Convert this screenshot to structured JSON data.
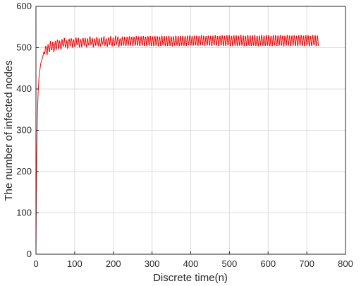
{
  "chart_data": {
    "type": "line",
    "title": "",
    "xlabel": "Discrete time(n)",
    "ylabel": "The number of infected nodes",
    "xlim": [
      0,
      800
    ],
    "ylim": [
      0,
      600
    ],
    "xticks": [
      0,
      100,
      200,
      300,
      400,
      500,
      600,
      700,
      800
    ],
    "yticks": [
      0,
      100,
      200,
      300,
      400,
      500,
      600
    ],
    "grid": true,
    "legend": "none",
    "series": [
      {
        "color": "#ff0000",
        "x": [
          0,
          1,
          2,
          3,
          4,
          5,
          6,
          8,
          10,
          12,
          15,
          18,
          22,
          25,
          30,
          35,
          40,
          50,
          60,
          70,
          80,
          90,
          100,
          120,
          140,
          160,
          180,
          200,
          250,
          300,
          350,
          400,
          450,
          500,
          550,
          600,
          650,
          700,
          730
        ],
        "y": [
          0,
          150,
          240,
          300,
          345,
          375,
          400,
          430,
          445,
          460,
          470,
          480,
          490,
          495,
          498,
          500,
          502,
          505,
          508,
          510,
          510,
          512,
          512,
          513,
          514,
          514,
          515,
          515,
          516,
          516,
          516,
          517,
          517,
          517,
          517,
          517,
          517,
          517,
          517
        ],
        "oscillation_amplitude": [
          0,
          0,
          0,
          0,
          0,
          0,
          0,
          0,
          0,
          0,
          0,
          0,
          8,
          12,
          14,
          14,
          14,
          14,
          13,
          13,
          12,
          12,
          12,
          12,
          12,
          12,
          12,
          13,
          14,
          15,
          15,
          15,
          15,
          16,
          16,
          16,
          16,
          16,
          16
        ],
        "oscillation_period": 6
      }
    ]
  }
}
